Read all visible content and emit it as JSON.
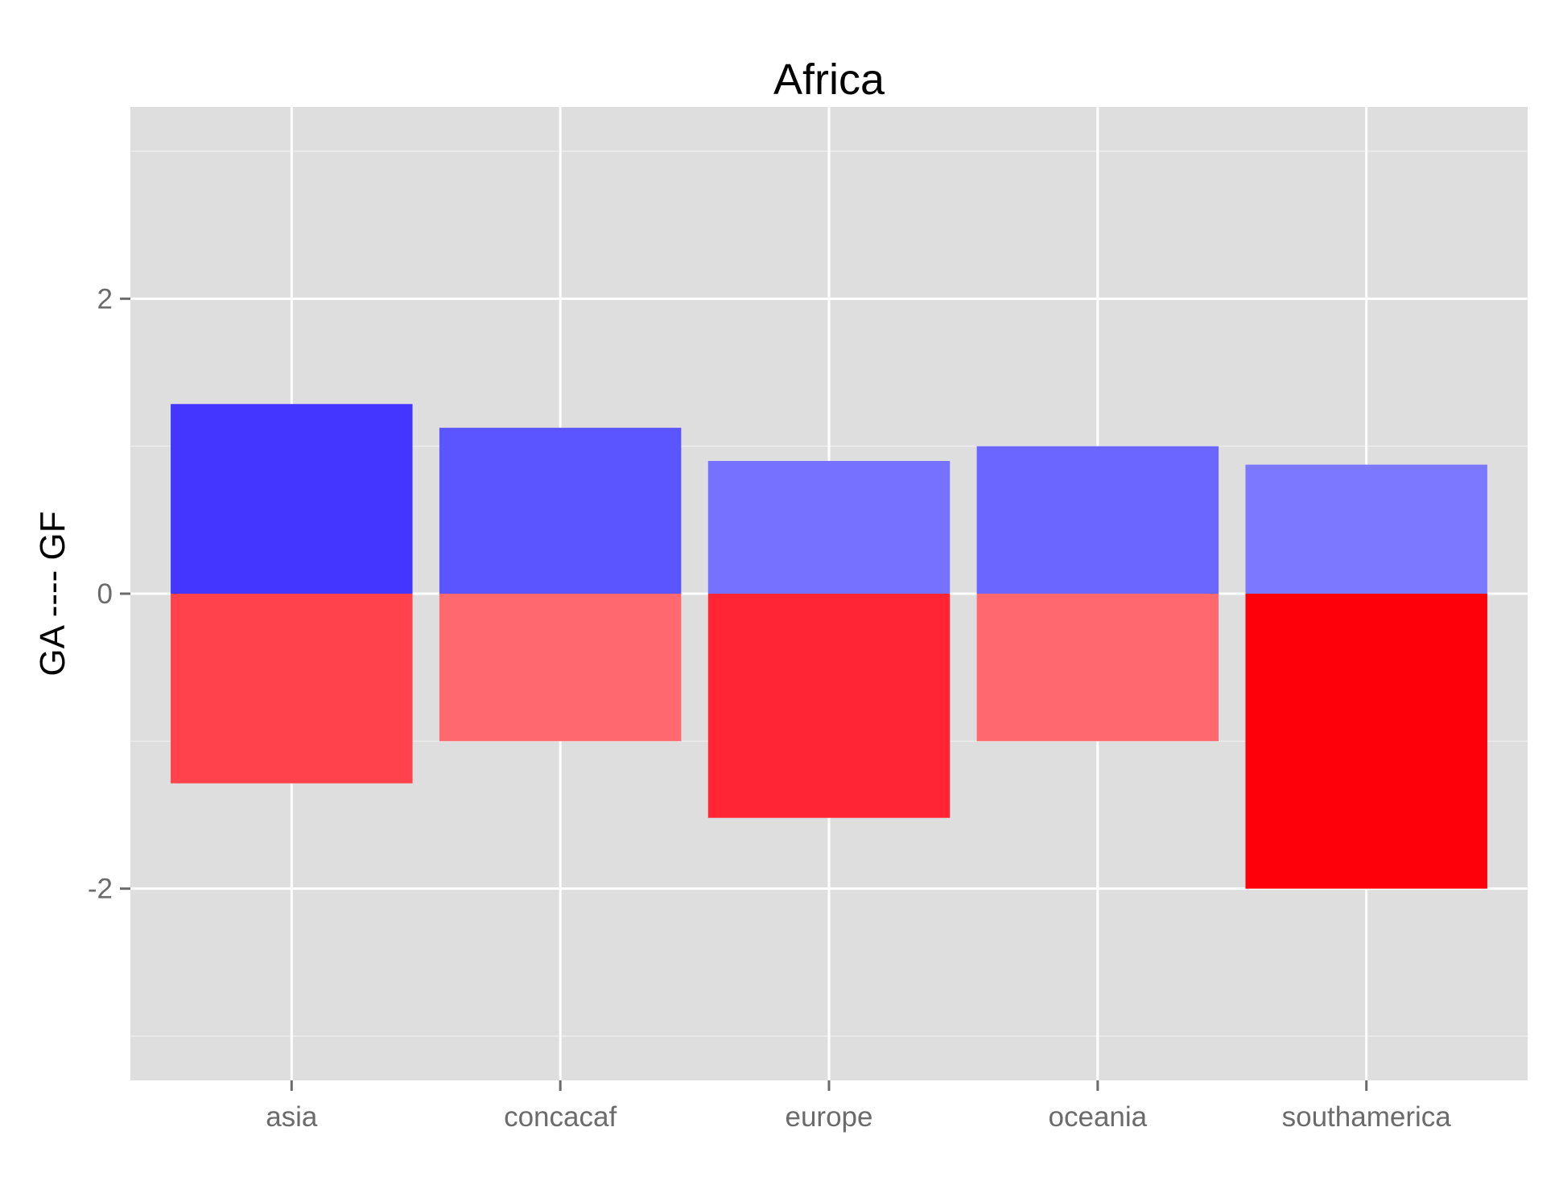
{
  "chart_data": {
    "type": "bar",
    "title": "Africa",
    "xlabel": "",
    "ylabel": "GA ---- GF",
    "categories": [
      "asia",
      "concacaf",
      "europe",
      "oceania",
      "southamerica"
    ],
    "series": [
      {
        "values": [
          1.286,
          1.125,
          0.9,
          1.0,
          0.875
        ]
      },
      {
        "values": [
          -1.286,
          -1.0,
          -1.52,
          -1.0,
          -2.0
        ]
      }
    ],
    "bar_colors": {
      "positive": [
        "#4536ff",
        "#5a55ff",
        "#7671ff",
        "#6b66ff",
        "#7c78ff"
      ],
      "negative": [
        "#ff424c",
        "#ff686e",
        "#ff2535",
        "#ff686e",
        "#fe000a"
      ]
    },
    "ylim": [
      -3.3,
      3.3
    ],
    "yticks": [
      -2,
      0,
      2
    ],
    "ytick_labels": [
      "-2",
      "0",
      "2"
    ],
    "grid": true,
    "panel_background": "#dedede",
    "grid_color": "#ffffff"
  }
}
